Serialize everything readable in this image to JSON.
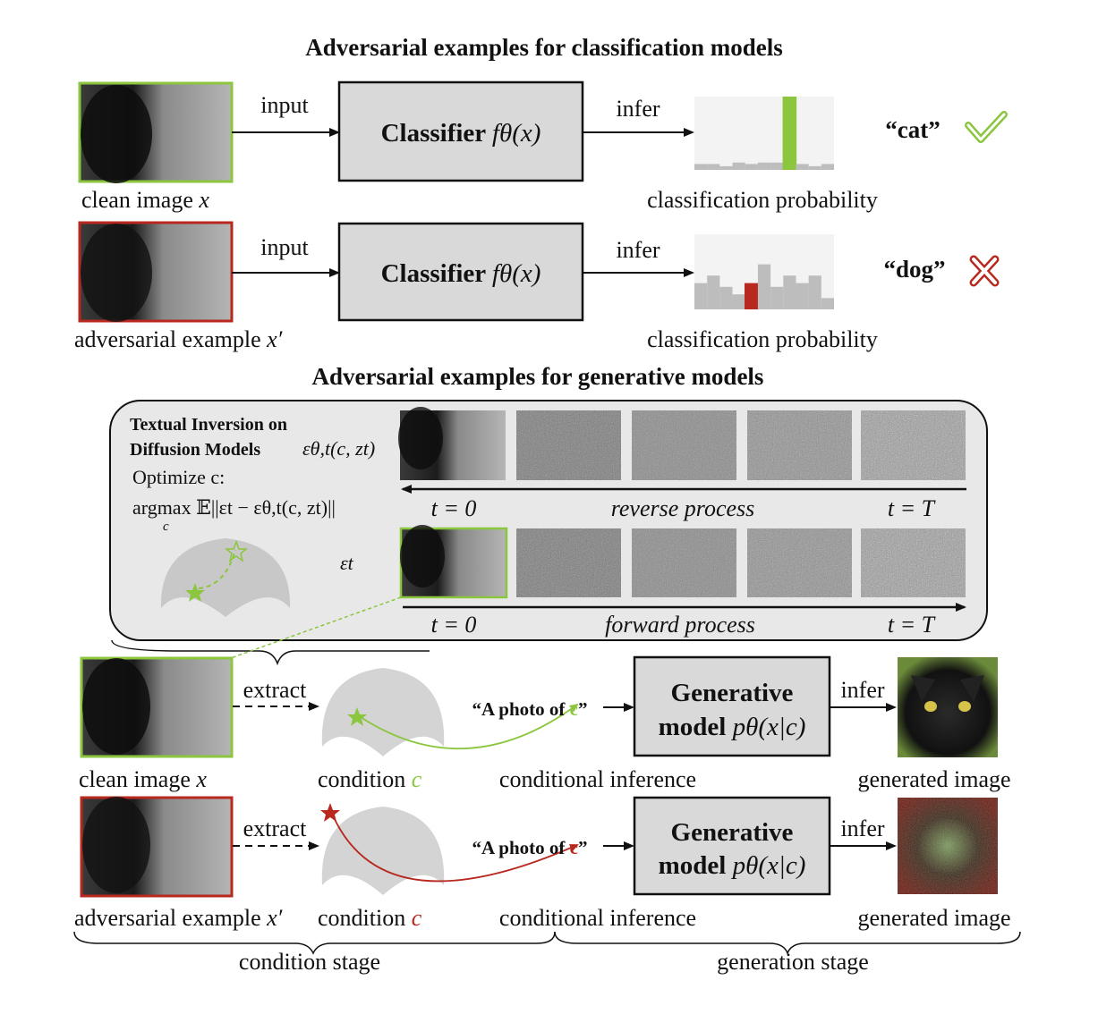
{
  "titles": {
    "classification": "Adversarial examples for classification models",
    "generative": "Adversarial examples for generative models"
  },
  "classification": {
    "rows": [
      {
        "image_label": "clean image",
        "image_var": "x",
        "arrow1": "input",
        "box_text": "Classifier",
        "box_math": "fθ(x)",
        "arrow2": "infer",
        "prob_label": "classification probability",
        "prediction": "“cat”",
        "result": "correct",
        "bars": [
          0.08,
          0.08,
          0.05,
          0.1,
          0.08,
          0.1,
          0.1,
          1.0,
          0.08,
          0.05,
          0.08
        ],
        "highlight_index": 7,
        "highlight_color": "#8cc63f"
      },
      {
        "image_label": "adversarial example",
        "image_var": "x′",
        "arrow1": "input",
        "box_text": "Classifier",
        "box_math": "fθ(x)",
        "arrow2": "infer",
        "prob_label": "classification probability",
        "prediction": "“dog”",
        "result": "wrong",
        "bars": [
          0.35,
          0.45,
          0.3,
          0.2,
          0.35,
          0.6,
          0.3,
          0.45,
          0.35,
          0.45,
          0.15
        ],
        "highlight_index": 4,
        "highlight_color": "#b8281e"
      }
    ]
  },
  "textual_inversion": {
    "heading_line1": "Textual Inversion on",
    "heading_line2": "Diffusion Models",
    "eps_fn": "εθ,t(c, zt)",
    "optimize": "Optimize c:",
    "objective": "argmax 𝔼||εt − εθ,t(c, zt)||",
    "objective_sub": "c",
    "eps_t": "εt",
    "reverse": {
      "start": "t = 0",
      "name": "reverse process",
      "end": "t = T"
    },
    "forward": {
      "start": "t = 0",
      "name": "forward process",
      "end": "t = T"
    }
  },
  "generation": {
    "rows": [
      {
        "image_label": "clean image",
        "image_var": "x",
        "extract": "extract",
        "cond_label": "condition",
        "cond_var": "c",
        "cond_color": "#8cc63f",
        "prompt": "“A photo of ",
        "prompt_c": "c",
        "prompt_end": "”",
        "infer_label": "conditional inference",
        "box_line1": "Generative",
        "box_line2": "model",
        "box_math": "pθ(x|c)",
        "infer": "infer",
        "out_label": "generated image"
      },
      {
        "image_label": "adversarial example",
        "image_var": "x′",
        "extract": "extract",
        "cond_label": "condition",
        "cond_var": "c",
        "cond_color": "#b8281e",
        "prompt": "“A photo of ",
        "prompt_c": "c",
        "prompt_end": "”",
        "infer_label": "conditional inference",
        "box_line1": "Generative",
        "box_line2": "model",
        "box_math": "pθ(x|c)",
        "infer": "infer",
        "out_label": "generated image"
      }
    ]
  },
  "stages": {
    "condition": "condition stage",
    "generation": "generation stage"
  },
  "colors": {
    "green": "#8cc63f",
    "red": "#b8281e",
    "box_fill": "#d9d9d9",
    "panel_fill": "#e8e8e8"
  }
}
